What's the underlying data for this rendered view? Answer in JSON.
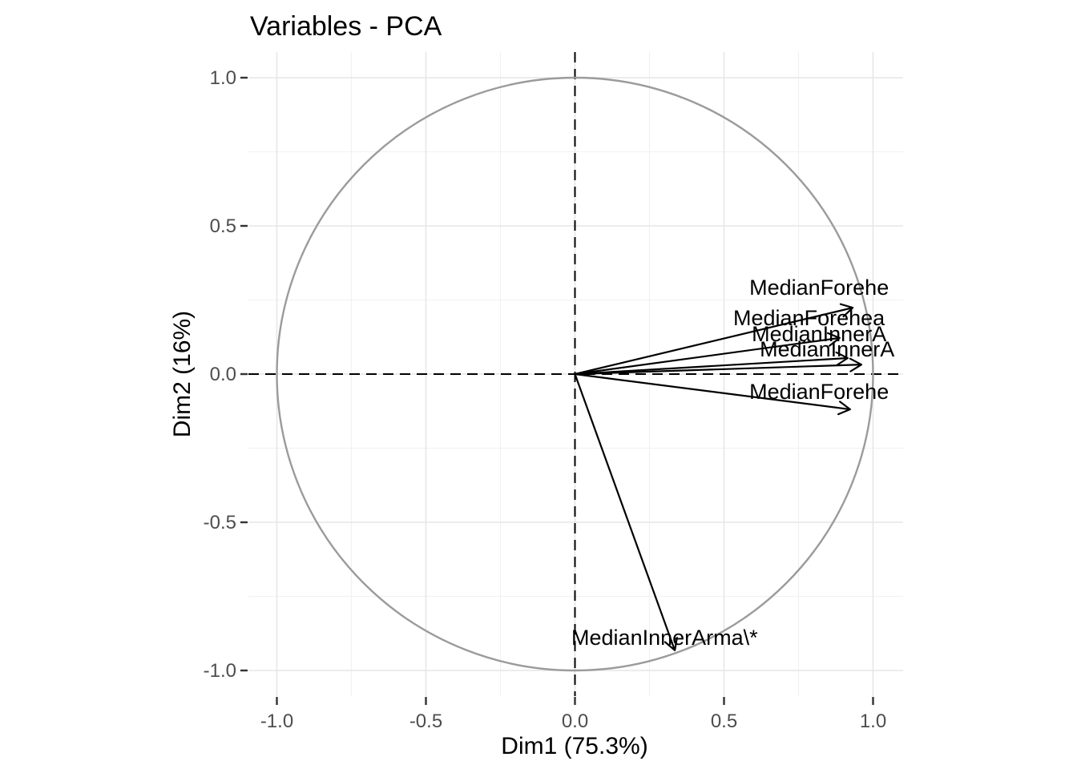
{
  "chart_data": {
    "type": "scatter",
    "subtype": "pca-variables-correlation-circle",
    "title": "Variables - PCA",
    "xlabel": "Dim1 (75.3%)",
    "ylabel": "Dim2 (16%)",
    "xlim": [
      -1.095,
      1.095
    ],
    "ylim": [
      -1.086,
      1.086
    ],
    "x_axis": {
      "tick_values": [
        -1.0,
        -0.5,
        0.0,
        0.5,
        1.0
      ],
      "tick_labels": [
        "-1.0",
        "-0.5",
        "0.0",
        "0.5",
        "1.0"
      ]
    },
    "y_axis": {
      "tick_values": [
        1.0,
        0.5,
        0.0,
        -0.5,
        -1.0
      ],
      "tick_labels": [
        "1.0",
        "0.5",
        "0.0",
        "-0.5",
        "-1.0"
      ]
    },
    "grid": {
      "major": true,
      "minor": true,
      "minor_values": [
        -0.75,
        -0.25,
        0.25,
        0.75
      ]
    },
    "unit_circle": true,
    "reference_lines": {
      "horizontal_at": 0,
      "vertical_at": 0,
      "style": "dashed"
    },
    "variables": [
      {
        "vector": {
          "x": 0.932,
          "y": 0.224
        },
        "label": {
          "text": "MedianForehe",
          "x": 0.585,
          "y": 0.268,
          "truncated": true
        }
      },
      {
        "vector": {
          "x": 0.888,
          "y": 0.122
        },
        "label": {
          "text": "MedianForehea",
          "x": 0.531,
          "y": 0.165,
          "truncated": true
        }
      },
      {
        "vector": {
          "x": 0.915,
          "y": 0.054
        },
        "label": {
          "text": "MedianInnerA",
          "x": 0.593,
          "y": 0.111,
          "truncated": true
        }
      },
      {
        "vector": {
          "x": 0.961,
          "y": 0.032
        },
        "label": {
          "text": "MedianInnerA",
          "x": 0.62,
          "y": 0.059,
          "truncated": true
        }
      },
      {
        "vector": {
          "x": 0.923,
          "y": -0.119
        },
        "label": {
          "text": "MedianForehe",
          "x": 0.585,
          "y": -0.084,
          "truncated": true
        }
      },
      {
        "vector": {
          "x": 0.335,
          "y": -0.932
        },
        "label": {
          "text": "MedianInnerArma\\*",
          "x": -0.012,
          "y": -0.914,
          "truncated": false
        }
      }
    ],
    "legend": "none"
  },
  "colors": {
    "background": "#ffffff",
    "grid_major": "#e6e6e6",
    "grid_minor": "#f1f1f1",
    "circle": "#9b9b9b",
    "arrow": "#000000",
    "dashed_line": "#000000",
    "tick_mark": "#333333",
    "tick_text": "#4d4d4d",
    "text": "#000000"
  }
}
